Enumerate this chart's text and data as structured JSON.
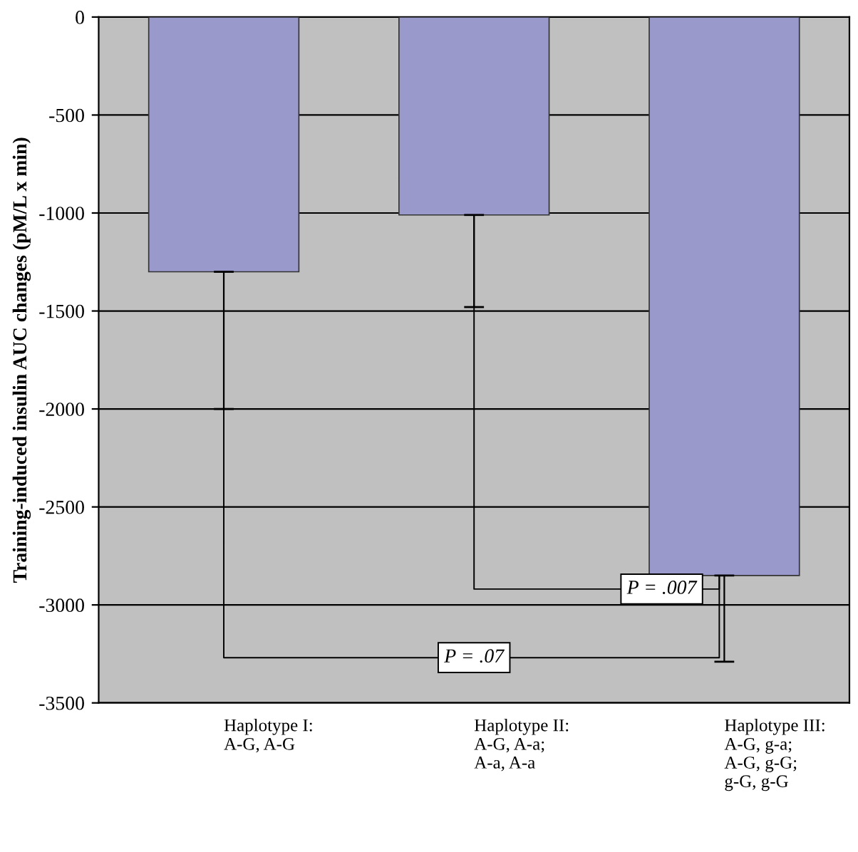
{
  "chart_data": {
    "type": "bar",
    "ylabel": "Training-induced insulin AUC changes (pM/L x min)",
    "categories": [
      "Haplotype I:\nA-G, A-G",
      "Haplotype II:\nA-G, A-a;\nA-a, A-a",
      "Haplotype III:\nA-G, g-a;\nA-G, g-G;\ng-G, g-G"
    ],
    "values": [
      -1300,
      -1010,
      -2850
    ],
    "errors": [
      [
        -2000,
        -1300
      ],
      [
        -1480,
        -1010
      ],
      [
        -3290,
        -2850
      ]
    ],
    "color": "#9999cc",
    "ylim": [
      -3500,
      0
    ],
    "yticks": [
      -3500,
      -3000,
      -2500,
      -2000,
      -1500,
      -1000,
      -500,
      0
    ],
    "grid": "y",
    "annotations": [
      "P = .07",
      "P = .007"
    ]
  }
}
